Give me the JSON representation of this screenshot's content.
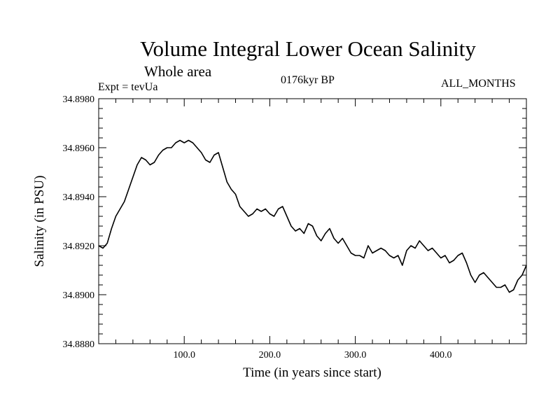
{
  "title": "Volume Integral Lower Ocean Salinity",
  "subtitle": "Whole area",
  "experiment": "Expt = tevUa",
  "period": "0176kyr BP",
  "months": "ALL_MONTHS",
  "chart_data": {
    "type": "line",
    "title": "Volume Integral Lower Ocean Salinity",
    "xlabel": "Time (in years since start)",
    "ylabel": "Salinity (in PSU)",
    "xlim": [
      0,
      500
    ],
    "ylim": [
      34.888,
      34.898
    ],
    "xticks": [
      100,
      200,
      300,
      400
    ],
    "xtick_labels": [
      "100.0",
      "200.0",
      "300.0",
      "400.0"
    ],
    "yticks": [
      34.888,
      34.89,
      34.892,
      34.894,
      34.896,
      34.898
    ],
    "ytick_labels": [
      "34.8880",
      "34.8900",
      "34.8920",
      "34.8940",
      "34.8960",
      "34.8980"
    ],
    "grid": false,
    "series": [
      {
        "name": "Salinity",
        "color": "#000000",
        "x": [
          0,
          5,
          10,
          15,
          20,
          25,
          30,
          35,
          40,
          45,
          50,
          55,
          60,
          65,
          70,
          75,
          80,
          85,
          90,
          95,
          100,
          105,
          110,
          115,
          120,
          125,
          130,
          135,
          140,
          145,
          150,
          155,
          160,
          165,
          170,
          175,
          180,
          185,
          190,
          195,
          200,
          205,
          210,
          215,
          220,
          225,
          230,
          235,
          240,
          245,
          250,
          255,
          260,
          265,
          270,
          275,
          280,
          285,
          290,
          295,
          300,
          305,
          310,
          315,
          320,
          325,
          330,
          335,
          340,
          345,
          350,
          355,
          360,
          365,
          370,
          375,
          380,
          385,
          390,
          395,
          400,
          405,
          410,
          415,
          420,
          425,
          430,
          435,
          440,
          445,
          450,
          455,
          460,
          465,
          470,
          475,
          480,
          485,
          490,
          495,
          500
        ],
        "values": [
          34.892,
          34.8919,
          34.8921,
          34.8927,
          34.8932,
          34.8935,
          34.8938,
          34.8943,
          34.8948,
          34.8953,
          34.8956,
          34.8955,
          34.8953,
          34.8954,
          34.8957,
          34.8959,
          34.896,
          34.896,
          34.8962,
          34.8963,
          34.8962,
          34.8963,
          34.8962,
          34.896,
          34.8958,
          34.8955,
          34.8954,
          34.8957,
          34.8958,
          34.8952,
          34.8946,
          34.8943,
          34.8941,
          34.8936,
          34.8934,
          34.8932,
          34.8933,
          34.8935,
          34.8934,
          34.8935,
          34.8933,
          34.8932,
          34.8935,
          34.8936,
          34.8932,
          34.8928,
          34.8926,
          34.8927,
          34.8925,
          34.8929,
          34.8928,
          34.8924,
          34.8922,
          34.8925,
          34.8927,
          34.8923,
          34.8921,
          34.8923,
          34.892,
          34.8917,
          34.8916,
          34.8916,
          34.8915,
          34.892,
          34.8917,
          34.8918,
          34.8919,
          34.8918,
          34.8916,
          34.8915,
          34.8916,
          34.8912,
          34.8918,
          34.892,
          34.8919,
          34.8922,
          34.892,
          34.8918,
          34.8919,
          34.8917,
          34.8915,
          34.8916,
          34.8913,
          34.8914,
          34.8916,
          34.8917,
          34.8913,
          34.8908,
          34.8905,
          34.8908,
          34.8909,
          34.8907,
          34.8905,
          34.8903,
          34.8903,
          34.8904,
          34.8901,
          34.8902,
          34.8906,
          34.8908,
          34.8912
        ]
      }
    ]
  }
}
